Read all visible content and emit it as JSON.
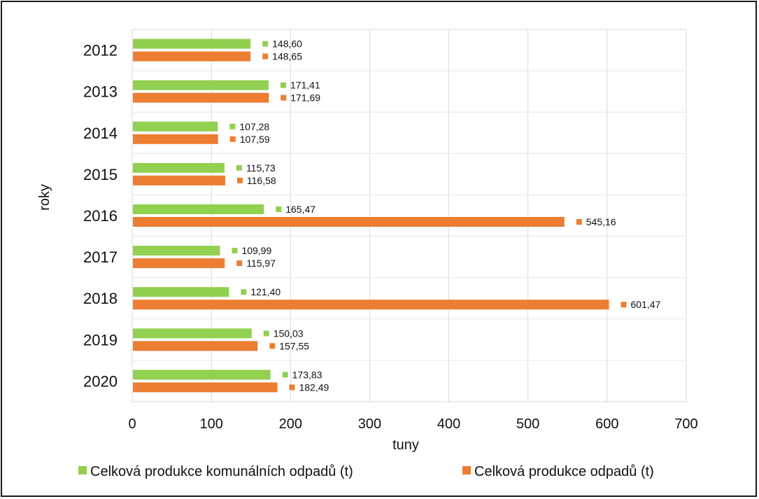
{
  "chart_data": {
    "type": "bar",
    "orientation": "horizontal",
    "categories": [
      "2012",
      "2013",
      "2014",
      "2015",
      "2016",
      "2017",
      "2018",
      "2019",
      "2020"
    ],
    "series": [
      {
        "name": "Celková produkce komunálních odpadů (t)",
        "color": "#92d050",
        "values": [
          148.6,
          171.41,
          107.28,
          115.73,
          165.47,
          109.99,
          121.4,
          150.03,
          173.83
        ],
        "labels": [
          "148,60",
          "171,41",
          "107,28",
          "115,73",
          "165,47",
          "109,99",
          "121,40",
          "150,03",
          "173,83"
        ]
      },
      {
        "name": "Celková produkce odpadů (t)",
        "color": "#ed7d31",
        "values": [
          148.65,
          171.69,
          107.59,
          116.58,
          545.16,
          115.97,
          601.47,
          157.55,
          182.49
        ],
        "labels": [
          "148,65",
          "171,69",
          "107,59",
          "116,58",
          "545,16",
          "115,97",
          "601,47",
          "157,55",
          "182,49"
        ]
      }
    ],
    "xlabel": "tuny",
    "ylabel": "roky",
    "xlim": [
      0,
      700
    ],
    "xticks": [
      "0",
      "100",
      "200",
      "300",
      "400",
      "500",
      "600",
      "700"
    ],
    "grid": true,
    "legend_position": "bottom"
  }
}
